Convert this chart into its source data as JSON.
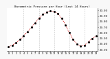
{
  "title": "Barometric Pressure per Hour (Last 24 Hours)",
  "hours": [
    0,
    1,
    2,
    3,
    4,
    5,
    6,
    7,
    8,
    9,
    10,
    11,
    12,
    13,
    14,
    15,
    16,
    17,
    18,
    19,
    20,
    21,
    22,
    23
  ],
  "pressure": [
    29.35,
    29.38,
    29.42,
    29.48,
    29.55,
    29.62,
    29.7,
    29.78,
    29.86,
    29.93,
    29.97,
    29.99,
    29.98,
    29.94,
    29.86,
    29.74,
    29.6,
    29.48,
    29.4,
    29.36,
    29.38,
    29.44,
    29.5,
    29.54
  ],
  "line_color": "#cc0000",
  "dot_color": "#000000",
  "bg_color": "#f8f8f8",
  "plot_bg_color": "#ffffff",
  "grid_color": "#888888",
  "ylim_min": 29.28,
  "ylim_max": 30.04,
  "ytick_values": [
    29.3,
    29.4,
    29.5,
    29.6,
    29.7,
    29.8,
    29.9,
    30.0
  ],
  "vgrid_positions": [
    4,
    8,
    12,
    16,
    20
  ],
  "title_fontsize": 3.0,
  "tick_fontsize": 2.8
}
